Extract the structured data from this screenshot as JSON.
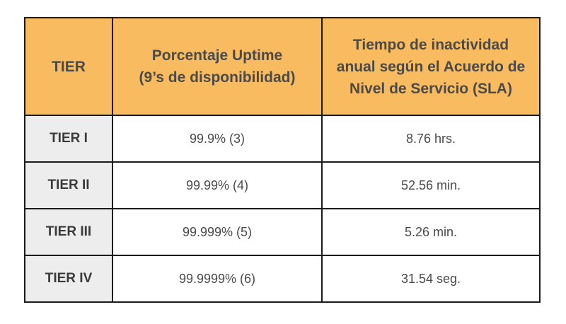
{
  "table": {
    "headers": {
      "tier": "TIER",
      "uptime": [
        "Porcentaje Uptime",
        "(9’s de disponibilidad)"
      ],
      "downtime": [
        "Tiempo de inactividad",
        "anual según el Acuerdo de",
        "Nivel de Servicio (SLA)"
      ]
    },
    "rows": [
      {
        "tier": "TIER I",
        "uptime": "99.9% (3)",
        "downtime": "8.76 hrs."
      },
      {
        "tier": "TIER II",
        "uptime": "99.99% (4)",
        "downtime": "52.56 min."
      },
      {
        "tier": "TIER III",
        "uptime": "99.999% (5)",
        "downtime": "5.26 min."
      },
      {
        "tier": "TIER IV",
        "uptime": "99.9999% (6)",
        "downtime": "31.54 seg."
      }
    ]
  },
  "colors": {
    "header_bg": "#f8bb5f",
    "tier_cell_bg": "#ededed",
    "border": "#1a1a1a",
    "text": "#4a4a4a"
  }
}
